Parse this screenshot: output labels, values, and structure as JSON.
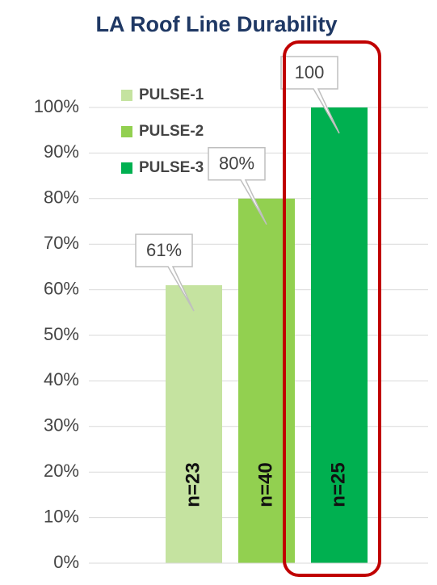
{
  "chart_data": {
    "type": "bar",
    "title": "LA Roof Line Durability",
    "categories": [
      null
    ],
    "series": [
      {
        "name": "PULSE-1",
        "color": "#c5e3a0",
        "values": [
          61
        ],
        "value_labels": [
          "61%"
        ],
        "annotations": [
          "n=23"
        ]
      },
      {
        "name": "PULSE-2",
        "color": "#92d050",
        "values": [
          80
        ],
        "value_labels": [
          "80%"
        ],
        "annotations": [
          "n=40"
        ]
      },
      {
        "name": "PULSE-3",
        "color": "#00b050",
        "values": [
          100
        ],
        "value_labels": [
          "100"
        ],
        "annotations": [
          "n=25"
        ]
      }
    ],
    "ylim": [
      0,
      100
    ],
    "yticks": [
      {
        "value": 0,
        "label": "0%"
      },
      {
        "value": 10,
        "label": "10%"
      },
      {
        "value": 20,
        "label": "20%"
      },
      {
        "value": 30,
        "label": "30%"
      },
      {
        "value": 40,
        "label": "40%"
      },
      {
        "value": 50,
        "label": "50%"
      },
      {
        "value": 60,
        "label": "60%"
      },
      {
        "value": 70,
        "label": "70%"
      },
      {
        "value": 80,
        "label": "80%"
      },
      {
        "value": 90,
        "label": "90%"
      },
      {
        "value": 100,
        "label": "100%"
      }
    ],
    "grid": true,
    "legend": "top-left"
  }
}
